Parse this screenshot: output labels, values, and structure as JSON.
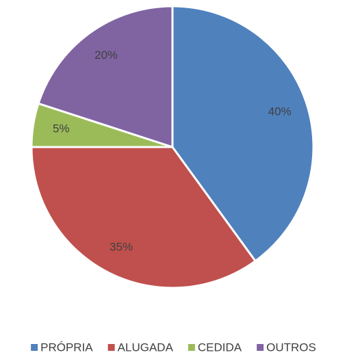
{
  "chart_data": {
    "type": "pie",
    "categories": [
      "PRÓPRIA",
      "ALUGADA",
      "CEDIDA",
      "OUTROS"
    ],
    "values": [
      40,
      35,
      5,
      20
    ],
    "value_labels": [
      "40%",
      "35%",
      "5%",
      "20%"
    ],
    "colors": [
      "#4f81bd",
      "#c0504d",
      "#9bbb59",
      "#8064a2"
    ],
    "legend": "bottom"
  }
}
